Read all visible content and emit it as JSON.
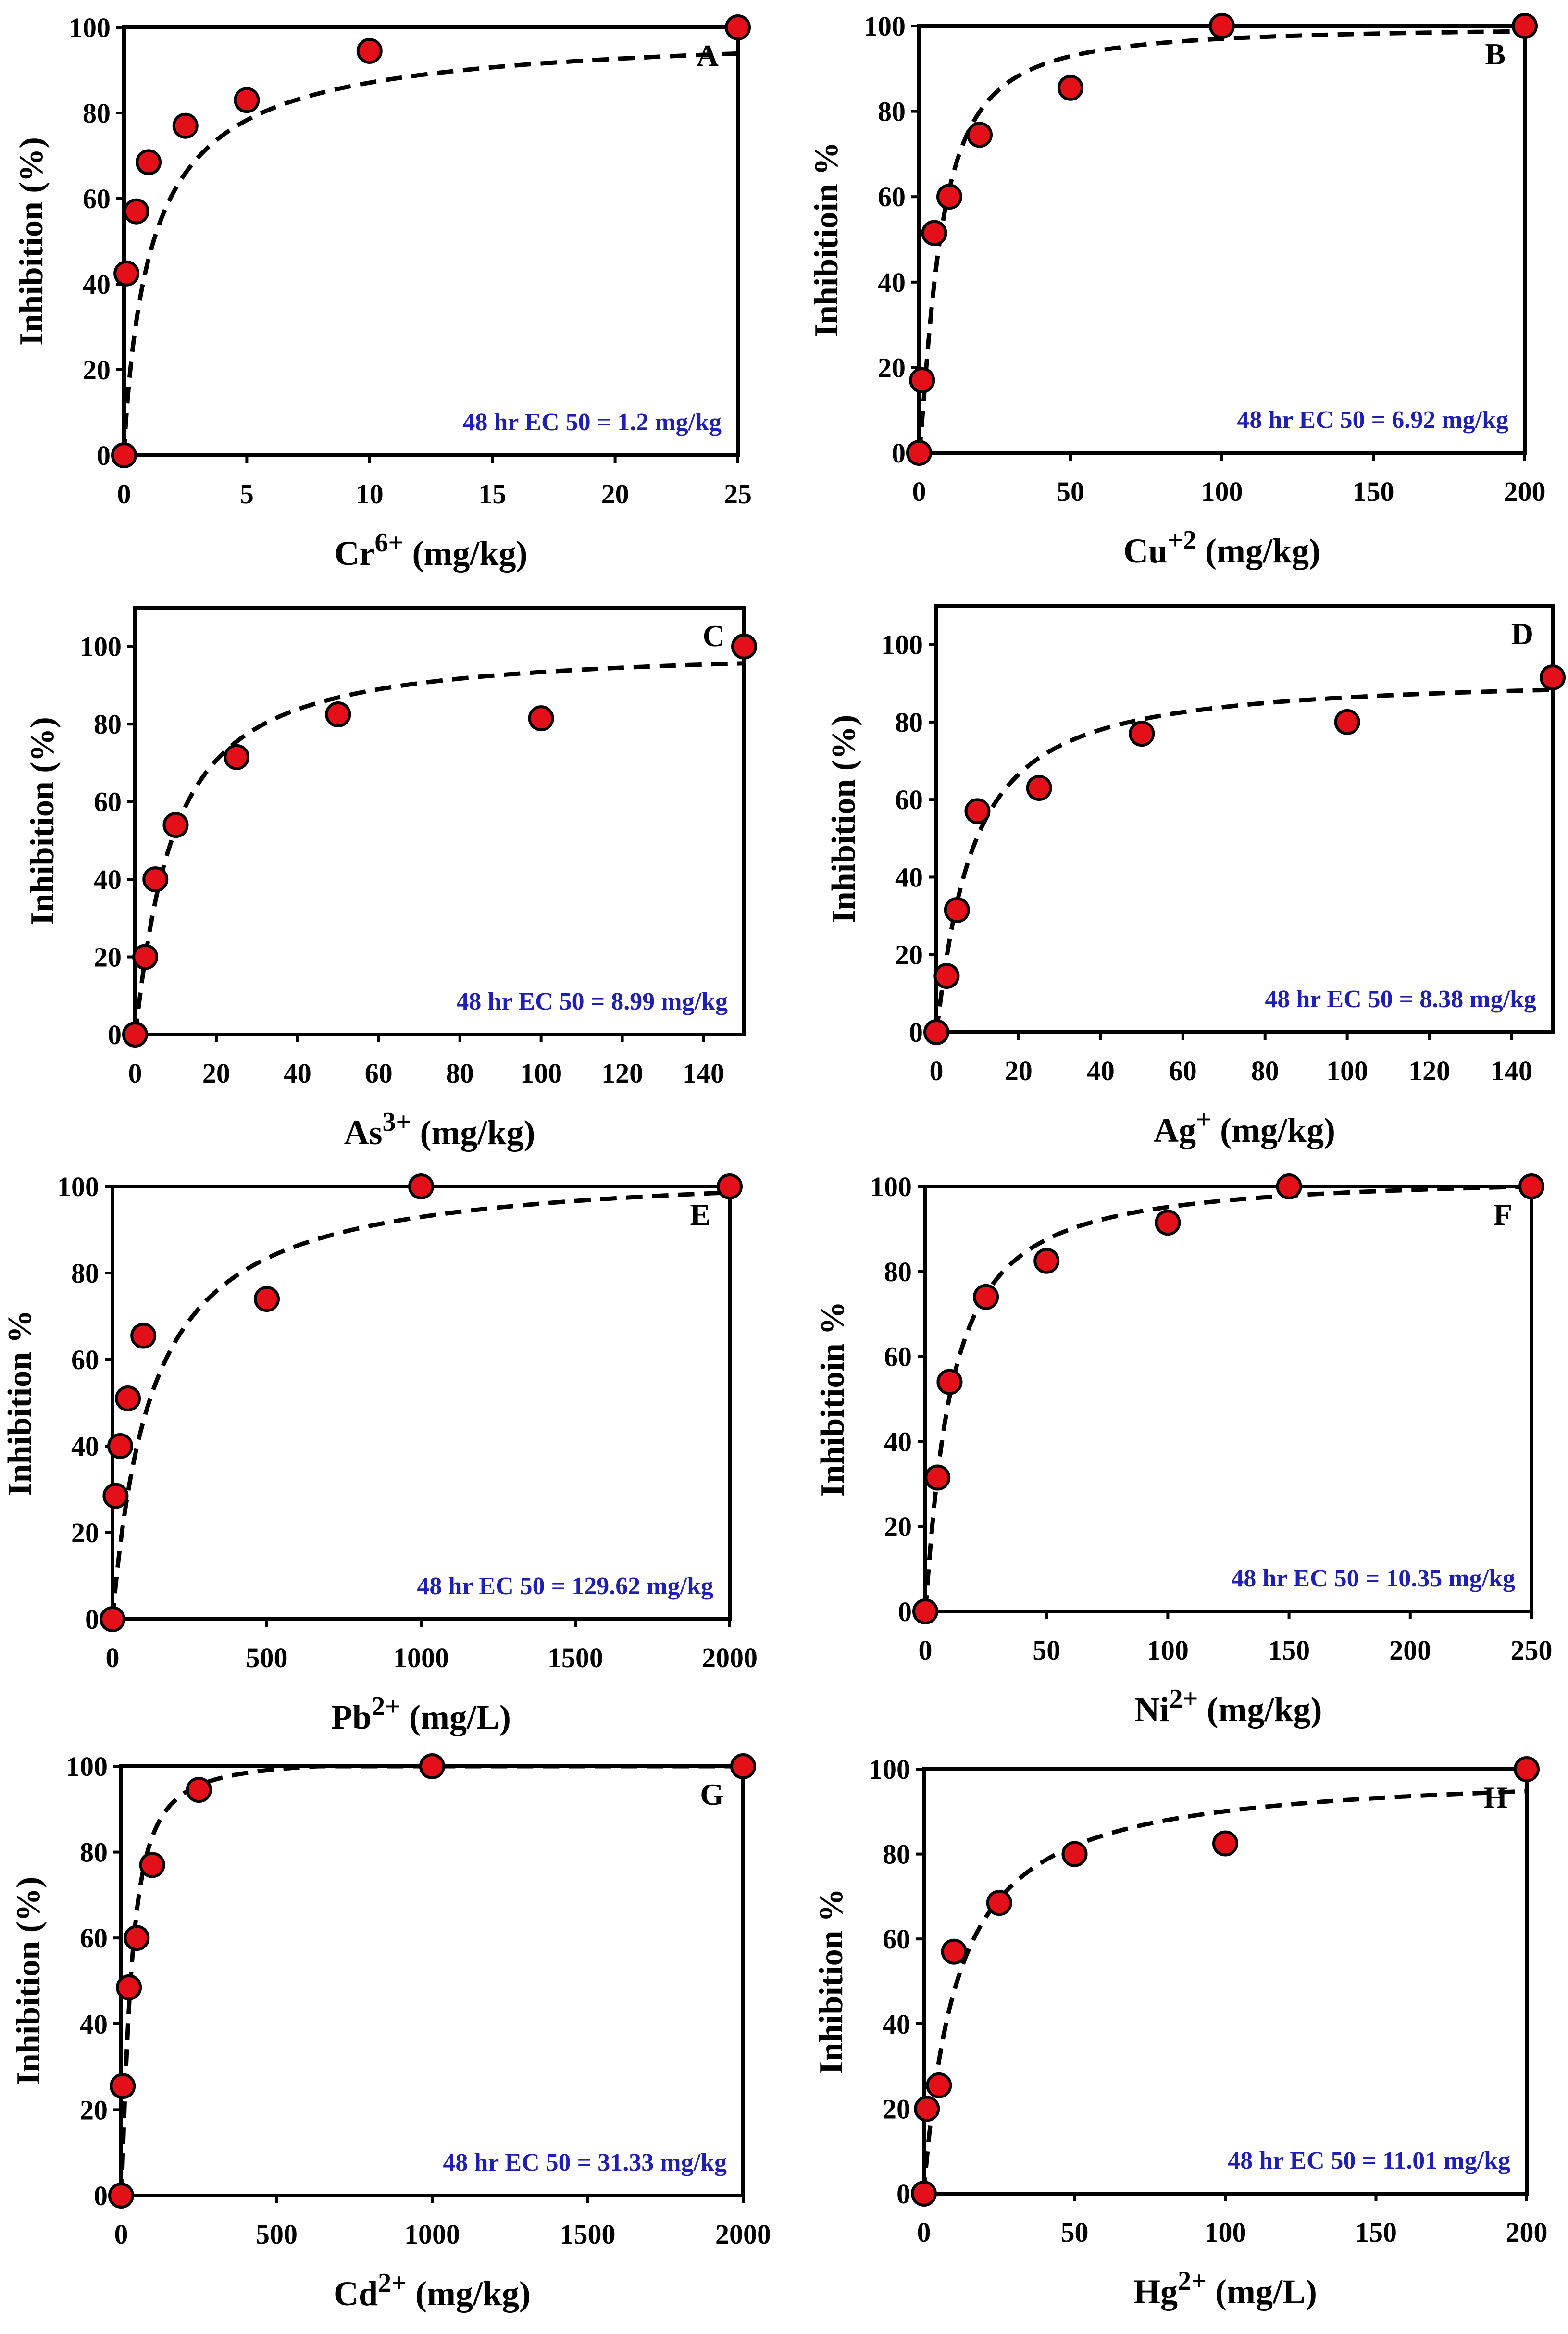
{
  "figure": {
    "background": "#ffffff",
    "marker_fill": "#e3101a",
    "marker_stroke": "#000000",
    "curve_color": "#000000",
    "ec50_color": "#1f1fb4"
  },
  "chart_data": [
    {
      "type": "scatter",
      "panel_letter": "A",
      "xlabel_base": "Cr",
      "xlabel_sup": "6+",
      "xlabel_unit": " (mg/kg)",
      "ylabel": "Inhibition (%)",
      "xlim": [
        0,
        25
      ],
      "xticks": [
        0,
        5,
        10,
        15,
        20,
        25
      ],
      "xtick_labels": [
        "0",
        "5",
        "10",
        "15",
        "20",
        "25"
      ],
      "ylim": [
        0,
        100
      ],
      "yticks": [
        0,
        20,
        40,
        60,
        80,
        100
      ],
      "ytick_labels": [
        "0",
        "20",
        "40",
        "60",
        "80",
        "100"
      ],
      "ec50_label": "48 hr EC 50 = 1.2 mg/kg",
      "ec50_value": 1.2,
      "hill_slope": 0.9,
      "points": {
        "x": [
          0,
          0.1,
          0.5,
          1,
          2.5,
          5,
          10,
          25
        ],
        "y": [
          0,
          42.5,
          57,
          68.5,
          77,
          83,
          94.5,
          100
        ]
      }
    },
    {
      "type": "scatter",
      "panel_letter": "B",
      "xlabel_base": "Cu",
      "xlabel_sup": "+2",
      "xlabel_unit": " (mg/kg)",
      "ylabel": "Inhibitioin %",
      "xlim": [
        0,
        200
      ],
      "xticks": [
        0,
        50,
        100,
        150,
        200
      ],
      "xtick_labels": [
        "0",
        "50",
        "100",
        "150",
        "200"
      ],
      "ylim": [
        0,
        100
      ],
      "yticks": [
        0,
        20,
        40,
        60,
        80,
        100
      ],
      "ytick_labels": [
        "0",
        "20",
        "40",
        "60",
        "80",
        "100"
      ],
      "ec50_label": "48 hr EC 50 = 6.92 mg/kg",
      "ec50_value": 6.92,
      "hill_slope": 1.3,
      "points": {
        "x": [
          0,
          1,
          5,
          10,
          20,
          50,
          100,
          200
        ],
        "y": [
          0,
          17,
          51.5,
          60,
          74.5,
          85.5,
          100,
          100
        ]
      }
    },
    {
      "type": "scatter",
      "panel_letter": "C",
      "xlabel_base": "As",
      "xlabel_sup": "3+",
      "xlabel_unit": " (mg/kg)",
      "ylabel": "Inhibition (%)",
      "xlim": [
        0,
        150
      ],
      "xticks": [
        0,
        20,
        40,
        60,
        80,
        100,
        120,
        140
      ],
      "xtick_labels": [
        "0",
        "20",
        "40",
        "60",
        "80",
        "100",
        "120",
        "140"
      ],
      "ylim": [
        0,
        110
      ],
      "yticks": [
        0,
        20,
        40,
        60,
        80,
        100
      ],
      "ytick_labels": [
        "0",
        "20",
        "40",
        "60",
        "80",
        "100"
      ],
      "ec50_label": "48 hr EC 50 = 8.99 mg/kg",
      "ec50_value": 8.99,
      "hill_slope": 1.1,
      "points": {
        "x": [
          0,
          2.5,
          5,
          10,
          25,
          50,
          100,
          150
        ],
        "y": [
          0,
          20,
          40,
          54,
          71.5,
          82.5,
          81.5,
          100
        ]
      }
    },
    {
      "type": "scatter",
      "panel_letter": "D",
      "xlabel_base": "Ag",
      "xlabel_sup": "+",
      "xlabel_unit": " (mg/kg)",
      "ylabel": "Inhibition (%)",
      "xlim": [
        0,
        150
      ],
      "xticks": [
        0,
        20,
        40,
        60,
        80,
        100,
        120,
        140
      ],
      "xtick_labels": [
        "0",
        "20",
        "40",
        "60",
        "80",
        "100",
        "120",
        "140"
      ],
      "ylim": [
        0,
        110
      ],
      "yticks": [
        0,
        20,
        40,
        60,
        80,
        100
      ],
      "ytick_labels": [
        "0",
        "20",
        "40",
        "60",
        "80",
        "100"
      ],
      "ec50_label": "48 hr EC 50 = 8.38 mg/kg",
      "ec50_value": 8.38,
      "hill_slope": 1.1,
      "top": 92,
      "points": {
        "x": [
          0,
          2.5,
          5,
          10,
          25,
          50,
          100,
          150
        ],
        "y": [
          0,
          14.5,
          31.5,
          57,
          63,
          77,
          80,
          91.5
        ]
      }
    },
    {
      "type": "scatter",
      "panel_letter": "E",
      "xlabel_base": "Pb",
      "xlabel_sup": "2+",
      "xlabel_unit": " (mg/L)",
      "ylabel": "Inhibition %",
      "xlim": [
        0,
        2000
      ],
      "xticks": [
        0,
        500,
        1000,
        1500,
        2000
      ],
      "xtick_labels": [
        "0",
        "500",
        "1000",
        "1500",
        "2000"
      ],
      "ylim": [
        0,
        100
      ],
      "yticks": [
        0,
        20,
        40,
        60,
        80,
        100
      ],
      "ytick_labels": [
        "0",
        "20",
        "40",
        "60",
        "80",
        "100"
      ],
      "ec50_label": "48 hr EC 50 = 129.62 mg/kg",
      "ec50_value": 129.62,
      "hill_slope": 1.0,
      "top": 105,
      "points": {
        "x": [
          0,
          10,
          25,
          50,
          100,
          500,
          1000,
          2000
        ],
        "y": [
          0,
          28.5,
          40,
          51,
          65.5,
          74,
          100,
          100
        ]
      }
    },
    {
      "type": "scatter",
      "panel_letter": "F",
      "xlabel_base": "Ni",
      "xlabel_sup": "2+",
      "xlabel_unit": " (mg/kg)",
      "ylabel": "Inhibitioin %",
      "xlim": [
        0,
        250
      ],
      "xticks": [
        0,
        50,
        100,
        150,
        200,
        250
      ],
      "xtick_labels": [
        "0",
        "50",
        "100",
        "150",
        "200",
        "250"
      ],
      "ylim": [
        0,
        100
      ],
      "yticks": [
        0,
        20,
        40,
        60,
        80,
        100
      ],
      "ytick_labels": [
        "0",
        "20",
        "40",
        "60",
        "80",
        "100"
      ],
      "ec50_label": "48 hr EC 50 = 10.35 mg/kg",
      "ec50_value": 10.35,
      "hill_slope": 1.1,
      "top": 103,
      "points": {
        "x": [
          0,
          5,
          10,
          25,
          50,
          100,
          150,
          250
        ],
        "y": [
          0,
          31.5,
          54,
          74,
          82.5,
          91.5,
          100,
          100
        ]
      }
    },
    {
      "type": "scatter",
      "panel_letter": "G",
      "xlabel_base": "Cd",
      "xlabel_sup": "2+",
      "xlabel_unit": " (mg/kg)",
      "ylabel": "Inhibition (%)",
      "xlim": [
        0,
        2000
      ],
      "xticks": [
        0,
        500,
        1000,
        1500,
        2000
      ],
      "xtick_labels": [
        "0",
        "500",
        "1000",
        "1500",
        "2000"
      ],
      "ylim": [
        0,
        100
      ],
      "yticks": [
        0,
        20,
        40,
        60,
        80,
        100
      ],
      "ytick_labels": [
        "0",
        "20",
        "40",
        "60",
        "80",
        "100"
      ],
      "ec50_label": "48 hr EC 50 = 31.33 mg/kg",
      "ec50_value": 31.33,
      "hill_slope": 1.3,
      "top": 102,
      "points": {
        "x": [
          0,
          5,
          25,
          50,
          100,
          250,
          1000,
          2000
        ],
        "y": [
          0,
          25.5,
          48.5,
          60,
          77,
          94.5,
          100,
          100
        ]
      }
    },
    {
      "type": "scatter",
      "panel_letter": "H",
      "xlabel_base": "Hg",
      "xlabel_sup": "2+",
      "xlabel_unit": " (mg/L)",
      "ylabel": "Inhibition %",
      "xlim": [
        0,
        200
      ],
      "xticks": [
        0,
        50,
        100,
        150,
        200
      ],
      "xtick_labels": [
        "0",
        "50",
        "100",
        "150",
        "200"
      ],
      "ylim": [
        0,
        100
      ],
      "yticks": [
        0,
        20,
        40,
        60,
        80,
        100
      ],
      "ytick_labels": [
        "0",
        "20",
        "40",
        "60",
        "80",
        "100"
      ],
      "ec50_label": "48 hr EC 50 = 11.01 mg/kg",
      "ec50_value": 11.01,
      "hill_slope": 1.0,
      "points": {
        "x": [
          0,
          1,
          5,
          10,
          25,
          50,
          100,
          200
        ],
        "y": [
          0,
          20,
          25.5,
          57,
          68.5,
          80,
          82.5,
          100
        ]
      }
    }
  ]
}
